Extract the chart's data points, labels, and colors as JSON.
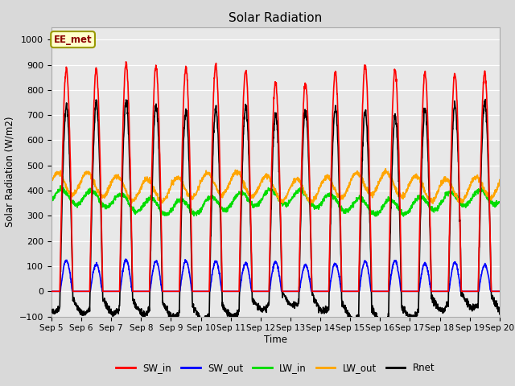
{
  "title": "Solar Radiation",
  "ylabel": "Solar Radiation (W/m2)",
  "xlabel": "Time",
  "ylim": [
    -100,
    1050
  ],
  "xlim": [
    0,
    15
  ],
  "annotation": "EE_met",
  "x_tick_labels": [
    "Sep 5",
    "Sep 6",
    "Sep 7",
    "Sep 8",
    "Sep 9",
    "Sep 10",
    "Sep 11",
    "Sep 12",
    "Sep 13",
    "Sep 14",
    "Sep 15",
    "Sep 16",
    "Sep 17",
    "Sep 18",
    "Sep 19",
    "Sep 20"
  ],
  "series": {
    "SW_in": {
      "color": "#ff0000",
      "lw": 1.2
    },
    "SW_out": {
      "color": "#0000ff",
      "lw": 1.2
    },
    "LW_in": {
      "color": "#00dd00",
      "lw": 1.2
    },
    "LW_out": {
      "color": "#ffa500",
      "lw": 1.2
    },
    "Rnet": {
      "color": "#000000",
      "lw": 1.2
    }
  },
  "bg_color": "#d9d9d9",
  "plot_bg": "#e8e8e8",
  "n_days": 15,
  "points_per_day": 144,
  "sw_in_peaks": [
    885,
    880,
    905,
    895,
    890,
    900,
    880,
    830,
    830,
    870,
    900,
    880,
    865,
    865,
    870
  ],
  "lw_in_base": 355,
  "lw_out_base": 415,
  "yticks": [
    -100,
    0,
    100,
    200,
    300,
    400,
    500,
    600,
    700,
    800,
    900,
    1000
  ]
}
